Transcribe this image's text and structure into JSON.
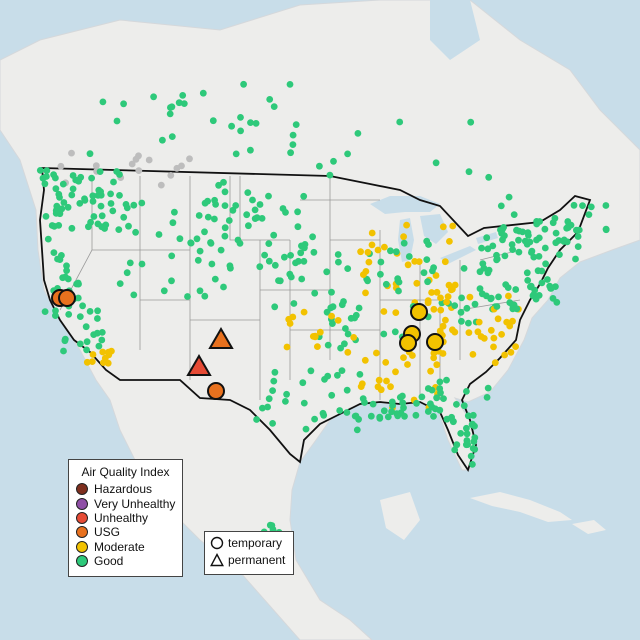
{
  "legend": {
    "title": "Air Quality Index",
    "categories": [
      {
        "label": "Hazardous",
        "color": "#7e2f1e"
      },
      {
        "label": "Very Unhealthy",
        "color": "#8f4fa6"
      },
      {
        "label": "Unhealthy",
        "color": "#e64b35"
      },
      {
        "label": "USG",
        "color": "#e8711e"
      },
      {
        "label": "Moderate",
        "color": "#f2c200"
      },
      {
        "label": "Good",
        "color": "#2ec97a"
      }
    ]
  },
  "monitor_types": [
    {
      "label": "temporary",
      "shape": "circle-outline-icon"
    },
    {
      "label": "permanent",
      "shape": "triangle-outline-icon"
    }
  ],
  "colors": {
    "water": "#c8dde9",
    "land": "#f2f2f0",
    "outside_land": "#ececea",
    "us_border": "#111111",
    "state_lines": "#9a9a9a",
    "no_data_gray": "#bdbdbd"
  }
}
